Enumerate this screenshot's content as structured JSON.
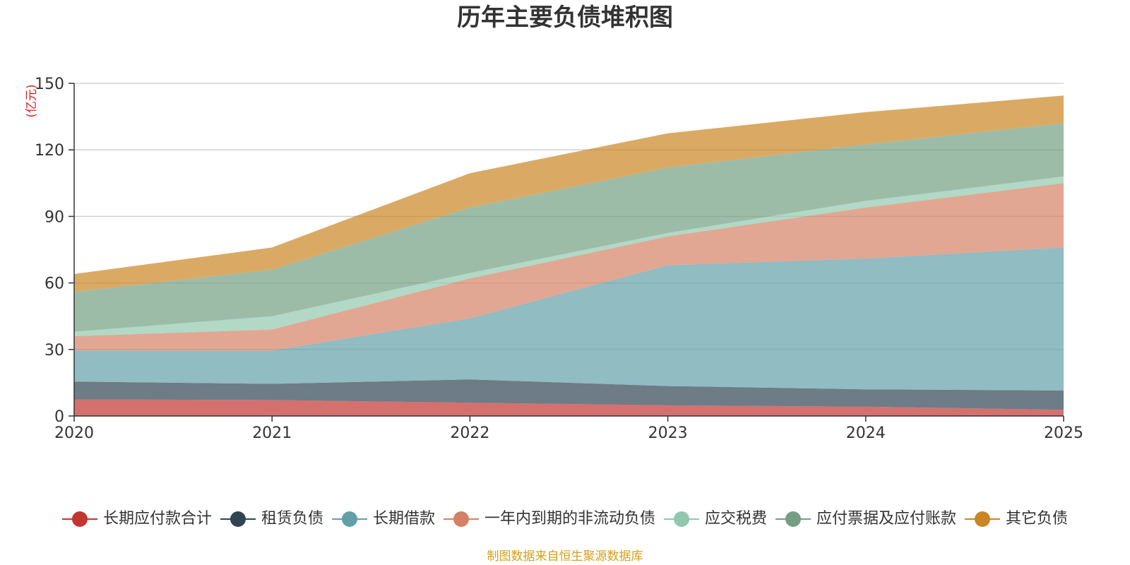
{
  "chart_data": {
    "type": "area",
    "stacked": true,
    "title": "历年主要负债堆积图",
    "ylabel": "(亿元)",
    "xlabel": "",
    "x": [
      "2020",
      "2021",
      "2022",
      "2023",
      "2024",
      "2025"
    ],
    "ylim": [
      0,
      150
    ],
    "yticks": [
      0,
      30,
      60,
      90,
      120,
      150
    ],
    "grid": true,
    "legend_position": "bottom",
    "series": [
      {
        "name": "长期应付款合计",
        "color": "#c23531",
        "values": [
          7.5,
          7.2,
          6.0,
          4.8,
          4.2,
          2.8
        ]
      },
      {
        "name": "租赁负债",
        "color": "#2f4554",
        "values": [
          8.0,
          7.3,
          10.5,
          8.7,
          7.8,
          8.7
        ]
      },
      {
        "name": "长期借款",
        "color": "#61a0a8",
        "values": [
          14.0,
          15.0,
          27.5,
          54.5,
          59.0,
          64.5
        ]
      },
      {
        "name": "一年内到期的非流动负债",
        "color": "#d48265",
        "values": [
          6.5,
          9.5,
          18.0,
          13.0,
          23.0,
          29.0
        ]
      },
      {
        "name": "应交税费",
        "color": "#91c7ae",
        "values": [
          2.0,
          6.0,
          2.5,
          1.5,
          3.0,
          3.0
        ]
      },
      {
        "name": "应付票据及应付账款",
        "color": "#749f83",
        "values": [
          18.0,
          21.0,
          29.5,
          29.5,
          25.5,
          24.0
        ]
      },
      {
        "name": "其它负债",
        "color": "#ca8622",
        "values": [
          8.0,
          10.0,
          15.5,
          15.5,
          14.5,
          12.5
        ]
      }
    ]
  },
  "source_note": "制图数据来自恒生聚源数据库"
}
